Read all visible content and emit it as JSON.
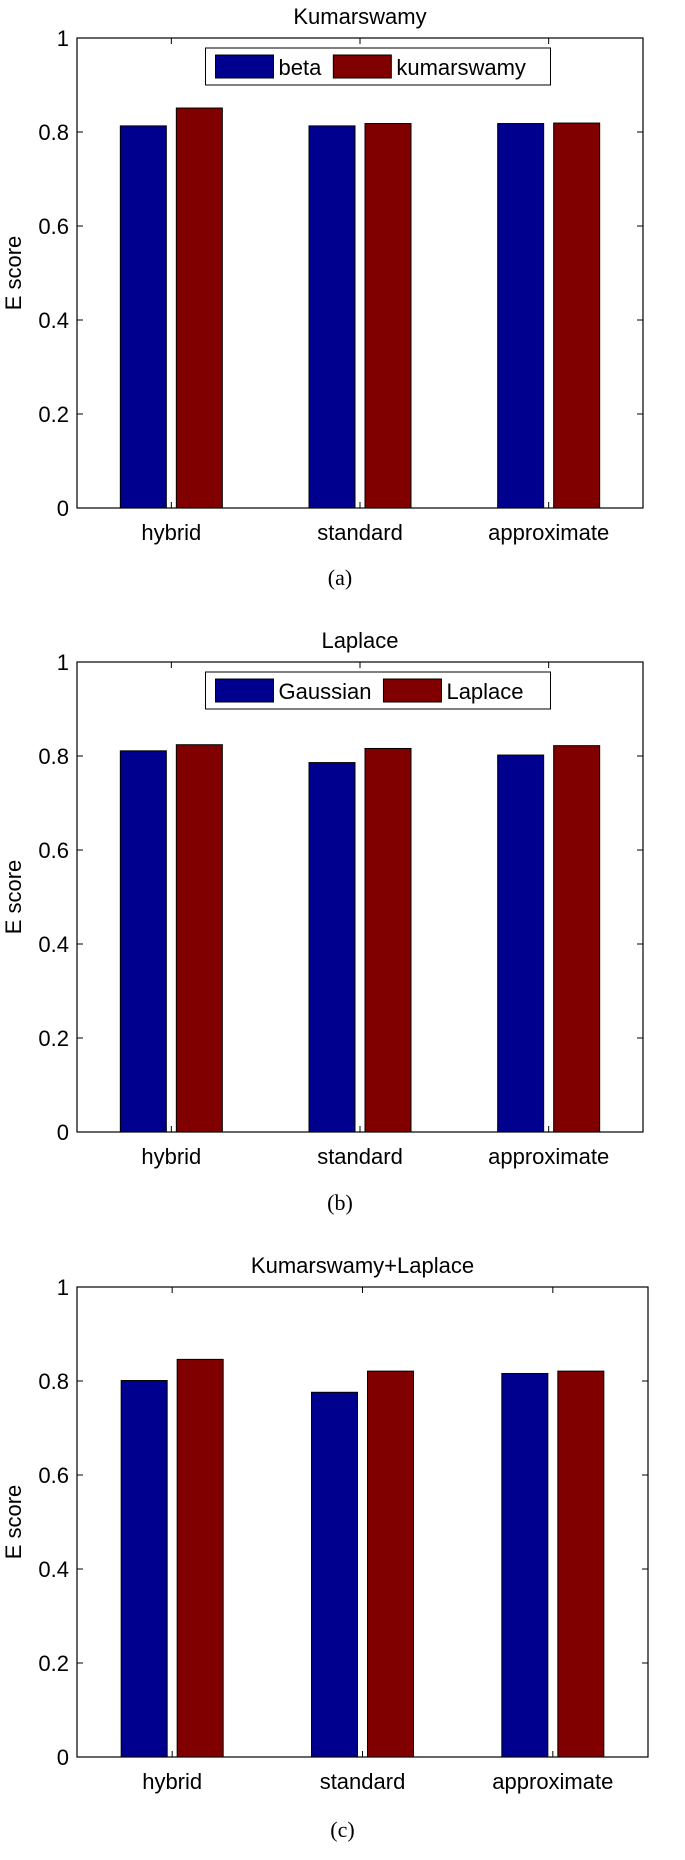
{
  "chart_data": [
    {
      "type": "bar",
      "title": "Kumarswamy",
      "ylabel": "E score",
      "xlabel": "",
      "categories": [
        "hybrid",
        "standard",
        "approximate"
      ],
      "series": [
        {
          "name": "beta",
          "values": [
            0.813,
            0.813,
            0.818
          ]
        },
        {
          "name": "kumarswamy",
          "values": [
            0.851,
            0.818,
            0.819
          ]
        }
      ],
      "ylim": [
        0,
        1
      ],
      "yticks": [
        "0",
        "0.2",
        "0.4",
        "0.6",
        "0.8",
        "1"
      ],
      "legend_position": "top-center",
      "colors": [
        "#00008F",
        "#800000"
      ],
      "caption": "(a)"
    },
    {
      "type": "bar",
      "title": "Laplace",
      "ylabel": "E score",
      "xlabel": "",
      "categories": [
        "hybrid",
        "standard",
        "approximate"
      ],
      "series": [
        {
          "name": "Gaussian",
          "values": [
            0.811,
            0.786,
            0.802
          ]
        },
        {
          "name": "Laplace",
          "values": [
            0.824,
            0.816,
            0.822
          ]
        }
      ],
      "ylim": [
        0,
        1
      ],
      "yticks": [
        "0",
        "0.2",
        "0.4",
        "0.6",
        "0.8",
        "1"
      ],
      "legend_position": "top-center",
      "colors": [
        "#00008F",
        "#800000"
      ],
      "caption": "(b)"
    },
    {
      "type": "bar",
      "title": "Kumarswamy+Laplace",
      "ylabel": "E score",
      "xlabel": "",
      "categories": [
        "hybrid",
        "standard",
        "approximate"
      ],
      "series": [
        {
          "values": [
            0.801,
            0.776,
            0.816
          ]
        },
        {
          "values": [
            0.846,
            0.821,
            0.821
          ]
        }
      ],
      "ylim": [
        0,
        1
      ],
      "yticks": [
        "0",
        "0.2",
        "0.4",
        "0.6",
        "0.8",
        "1"
      ],
      "legend_position": "none",
      "colors": [
        "#00008F",
        "#800000"
      ],
      "caption": "(c)"
    }
  ]
}
